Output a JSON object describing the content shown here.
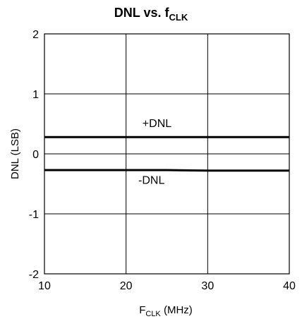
{
  "chart_data": {
    "type": "line",
    "title": {
      "main": "DNL vs. f",
      "sub": "CLK"
    },
    "xlabel": {
      "main": "F",
      "sub": "CLK",
      "suffix": " (MHz)"
    },
    "ylabel": "DNL (LSB)",
    "xlim": [
      10,
      40
    ],
    "ylim": [
      -2,
      2
    ],
    "xticks": [
      10,
      20,
      30,
      40
    ],
    "yticks": [
      -2,
      -1,
      0,
      1,
      2
    ],
    "grid": true,
    "series": [
      {
        "name": "+DNL",
        "x": [
          10,
          15,
          20,
          25,
          30,
          35,
          40
        ],
        "y": [
          0.28,
          0.28,
          0.28,
          0.28,
          0.28,
          0.28,
          0.28
        ]
      },
      {
        "name": "-DNL",
        "x": [
          10,
          15,
          20,
          25,
          30,
          35,
          40
        ],
        "y": [
          -0.27,
          -0.27,
          -0.27,
          -0.27,
          -0.28,
          -0.28,
          -0.28
        ]
      }
    ],
    "annotations": [
      {
        "text": "+DNL",
        "x": 22,
        "y": 0.52
      },
      {
        "text": "-DNL",
        "x": 21.5,
        "y": -0.43
      }
    ],
    "colors": {
      "line": "#000000",
      "grid": "#000000"
    }
  }
}
